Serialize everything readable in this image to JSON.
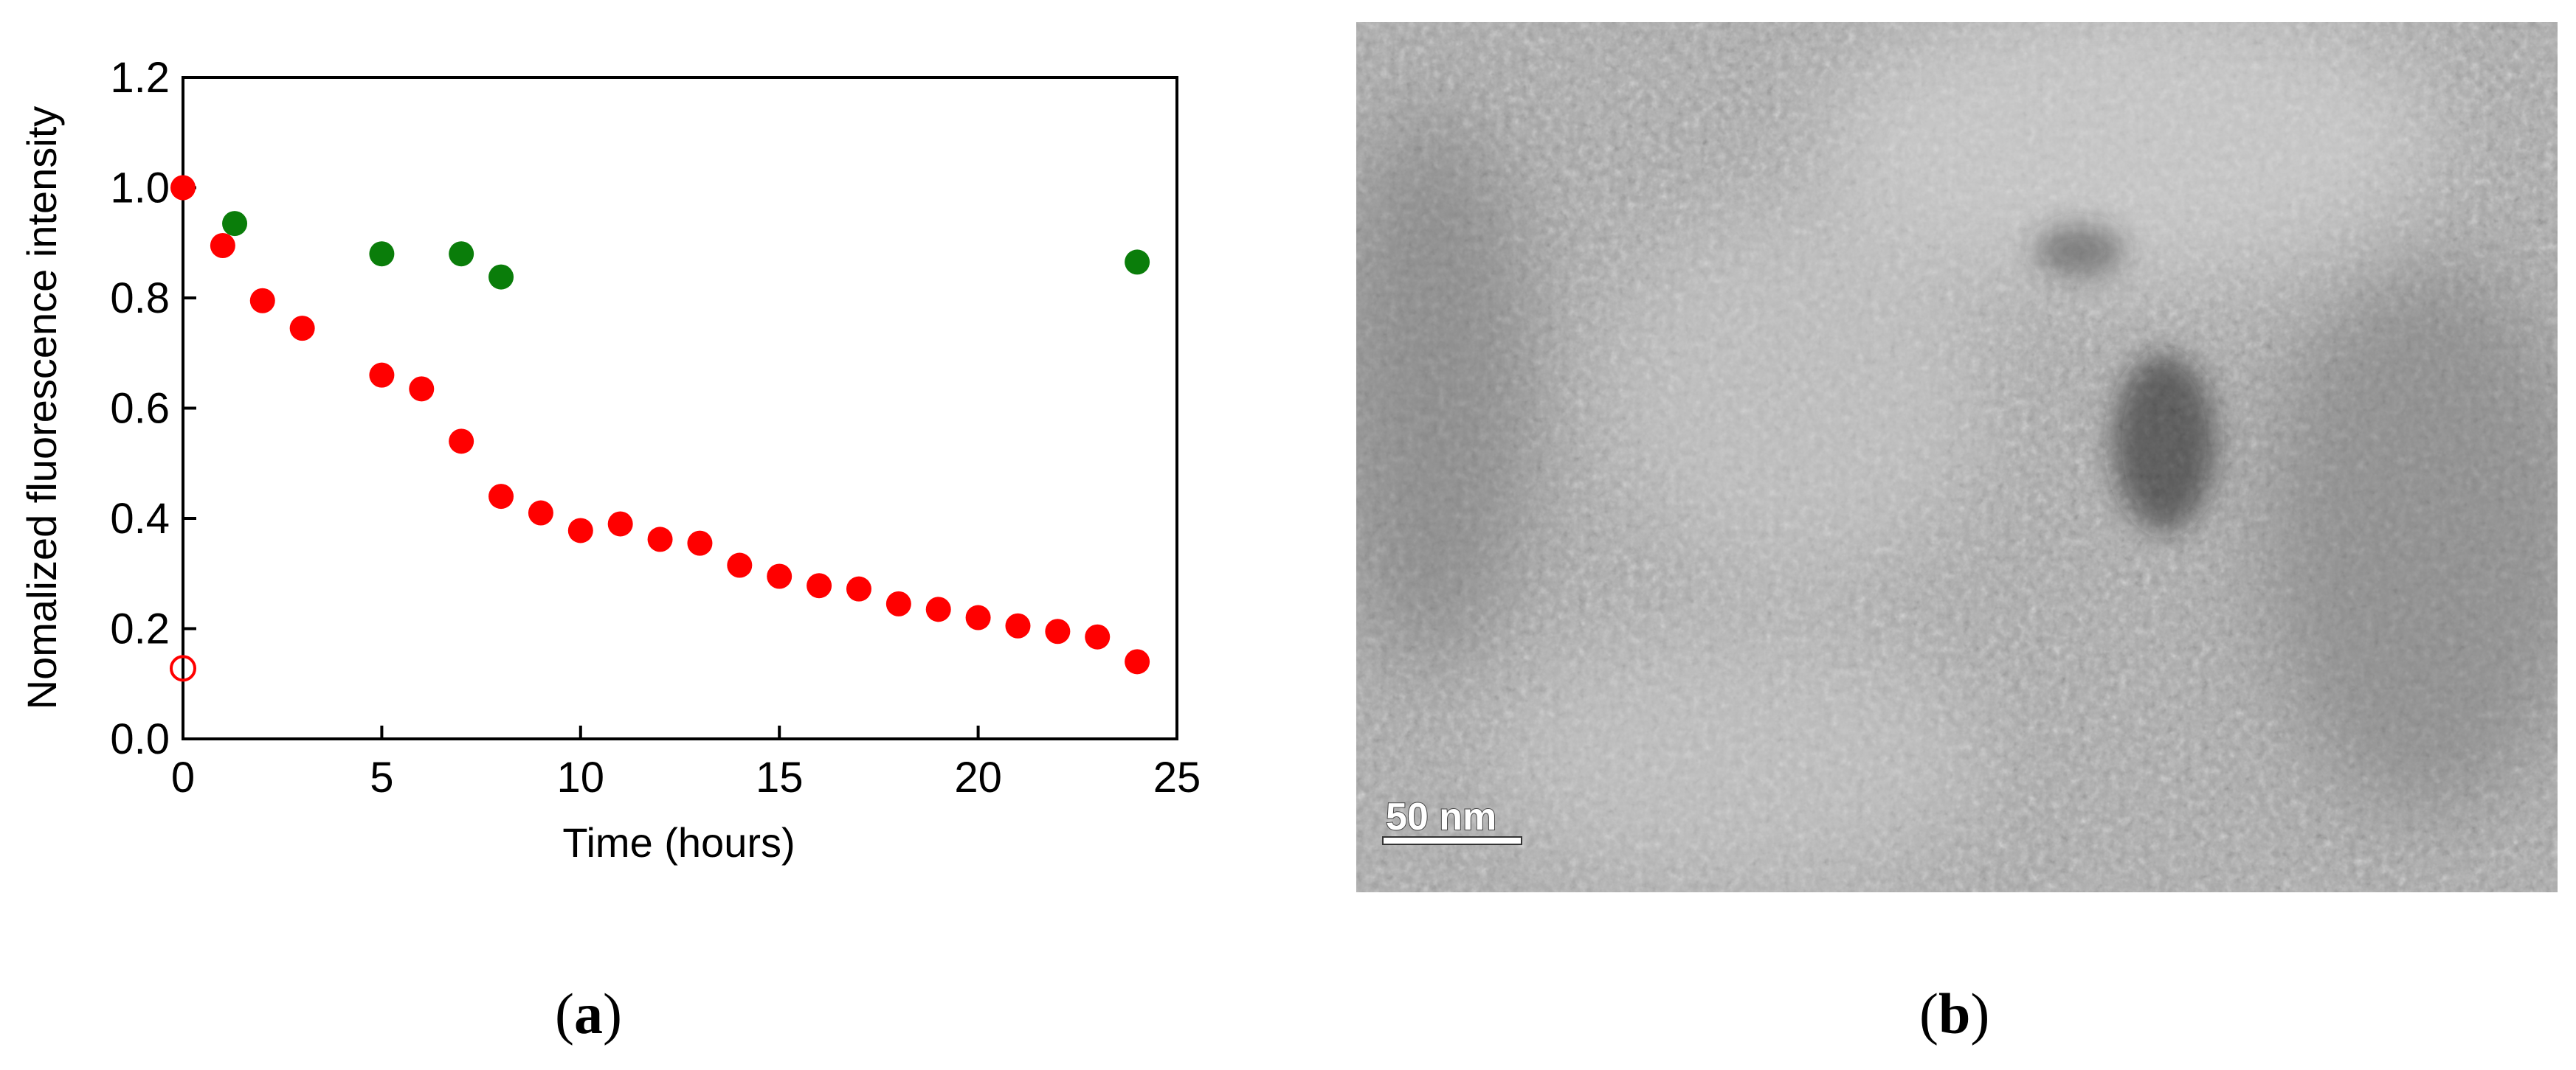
{
  "panel_labels": {
    "a": "a",
    "b": "b"
  },
  "colors": {
    "red_series": "#ff0000",
    "green_series": "#0a7d0a",
    "axis": "#000000"
  },
  "chart_data": {
    "type": "scatter",
    "title": "",
    "xlabel": "Time (hours)",
    "ylabel": "Nomalized fluorescence intensity",
    "xlim": [
      0,
      25
    ],
    "ylim": [
      0.0,
      1.2
    ],
    "x_ticks": [
      "0",
      "5",
      "10",
      "15",
      "20",
      "25"
    ],
    "y_ticks": [
      "0.0",
      "0.2",
      "0.4",
      "0.6",
      "0.8",
      "1.0",
      "1.2"
    ],
    "grid": false,
    "series": [
      {
        "color": "#ff0000",
        "marker": "filled-circle",
        "points": [
          [
            0,
            1.0
          ],
          [
            1,
            0.895
          ],
          [
            2,
            0.795
          ],
          [
            3,
            0.745
          ],
          [
            5,
            0.66
          ],
          [
            6,
            0.635
          ],
          [
            7,
            0.54
          ],
          [
            8,
            0.44
          ],
          [
            9,
            0.41
          ],
          [
            10,
            0.378
          ],
          [
            11,
            0.39
          ],
          [
            12,
            0.362
          ],
          [
            13,
            0.355
          ],
          [
            14,
            0.315
          ],
          [
            15,
            0.295
          ],
          [
            16,
            0.278
          ],
          [
            17,
            0.272
          ],
          [
            18,
            0.245
          ],
          [
            19,
            0.235
          ],
          [
            20,
            0.22
          ],
          [
            21,
            0.205
          ],
          [
            22,
            0.195
          ],
          [
            23,
            0.185
          ],
          [
            24,
            0.14
          ]
        ]
      },
      {
        "color": "#0a7d0a",
        "marker": "filled-circle",
        "points": [
          [
            1.3,
            0.935
          ],
          [
            5,
            0.88
          ],
          [
            7,
            0.88
          ],
          [
            8,
            0.838
          ],
          [
            24,
            0.865
          ]
        ]
      },
      {
        "color": "#ff0000",
        "marker": "open-circle",
        "points": [
          [
            0,
            0.128
          ]
        ]
      }
    ]
  },
  "micrograph": {
    "scale_bar_label": "50 nm"
  }
}
